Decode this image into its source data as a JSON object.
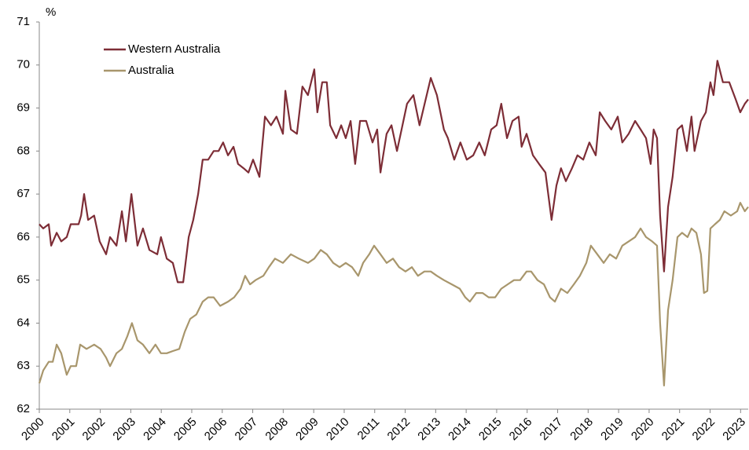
{
  "chart_data": {
    "type": "line",
    "y_unit_label": "%",
    "xlim": [
      2000,
      2023.25
    ],
    "xticks": [
      2000,
      2001,
      2002,
      2003,
      2004,
      2005,
      2006,
      2007,
      2008,
      2009,
      2010,
      2011,
      2012,
      2013,
      2014,
      2015,
      2016,
      2017,
      2018,
      2019,
      2020,
      2021,
      2022,
      2023
    ],
    "ylim": [
      62,
      71
    ],
    "yticks": [
      62,
      63,
      64,
      65,
      66,
      67,
      68,
      69,
      70,
      71
    ],
    "grid": false,
    "legend": "upper left",
    "series": [
      {
        "name": "Western Australia",
        "color": "#7d2d36",
        "x": [
          2000.0,
          2000.13,
          2000.31,
          2000.39,
          2000.57,
          2000.72,
          2000.9,
          2001.03,
          2001.29,
          2001.37,
          2001.47,
          2001.6,
          2001.8,
          2001.98,
          2002.19,
          2002.32,
          2002.53,
          2002.71,
          2002.84,
          2003.02,
          2003.22,
          2003.4,
          2003.61,
          2003.87,
          2003.99,
          2004.18,
          2004.38,
          2004.54,
          2004.72,
          2004.9,
          2005.05,
          2005.21,
          2005.36,
          2005.54,
          2005.72,
          2005.88,
          2006.03,
          2006.19,
          2006.37,
          2006.52,
          2006.7,
          2006.86,
          2007.01,
          2007.22,
          2007.4,
          2007.6,
          2007.78,
          2007.99,
          2008.07,
          2008.25,
          2008.45,
          2008.63,
          2008.81,
          2009.02,
          2009.12,
          2009.28,
          2009.43,
          2009.54,
          2009.74,
          2009.9,
          2010.05,
          2010.21,
          2010.36,
          2010.52,
          2010.72,
          2010.93,
          2011.08,
          2011.19,
          2011.39,
          2011.55,
          2011.73,
          2011.91,
          2012.06,
          2012.27,
          2012.47,
          2012.84,
          2013.04,
          2013.27,
          2013.4,
          2013.61,
          2013.81,
          2014.02,
          2014.23,
          2014.43,
          2014.61,
          2014.82,
          2015.0,
          2015.15,
          2015.34,
          2015.52,
          2015.72,
          2015.82,
          2015.98,
          2016.19,
          2016.39,
          2016.6,
          2016.8,
          2016.96,
          2017.11,
          2017.27,
          2017.47,
          2017.65,
          2017.84,
          2018.04,
          2018.25,
          2018.38,
          2018.56,
          2018.76,
          2018.97,
          2019.12,
          2019.33,
          2019.54,
          2019.72,
          2019.9,
          2020.05,
          2020.15,
          2020.26,
          2020.36,
          2020.49,
          2020.62,
          2020.77,
          2020.93,
          2021.08,
          2021.24,
          2021.39,
          2021.49,
          2021.7,
          2021.86,
          2022.01,
          2022.11,
          2022.24,
          2022.42,
          2022.63,
          2022.84,
          2022.99,
          2023.14,
          2023.25
        ],
        "values": [
          66.3,
          66.2,
          66.3,
          65.8,
          66.1,
          65.9,
          66.0,
          66.3,
          66.3,
          66.5,
          67.0,
          66.4,
          66.5,
          65.9,
          65.6,
          66.0,
          65.8,
          66.6,
          65.9,
          67.0,
          65.8,
          66.2,
          65.7,
          65.6,
          66.0,
          65.5,
          65.4,
          64.95,
          64.95,
          66.0,
          66.4,
          67.0,
          67.8,
          67.8,
          68.0,
          68.0,
          68.2,
          67.9,
          68.1,
          67.7,
          67.6,
          67.5,
          67.8,
          67.4,
          68.8,
          68.6,
          68.8,
          68.4,
          69.4,
          68.5,
          68.4,
          69.5,
          69.3,
          69.9,
          68.9,
          69.6,
          69.6,
          68.6,
          68.3,
          68.6,
          68.3,
          68.7,
          67.7,
          68.7,
          68.7,
          68.2,
          68.5,
          67.5,
          68.4,
          68.6,
          68.0,
          68.6,
          69.1,
          69.3,
          68.6,
          69.7,
          69.3,
          68.5,
          68.3,
          67.8,
          68.2,
          67.8,
          67.9,
          68.2,
          67.9,
          68.5,
          68.6,
          69.1,
          68.3,
          68.7,
          68.8,
          68.1,
          68.4,
          67.9,
          67.7,
          67.5,
          66.4,
          67.2,
          67.6,
          67.3,
          67.6,
          67.9,
          67.8,
          68.2,
          67.9,
          68.9,
          68.7,
          68.5,
          68.8,
          68.2,
          68.4,
          68.7,
          68.5,
          68.3,
          67.7,
          68.5,
          68.3,
          66.5,
          65.2,
          66.7,
          67.4,
          68.5,
          68.6,
          68.0,
          68.8,
          68.0,
          68.7,
          68.9,
          69.6,
          69.3,
          70.1,
          69.6,
          69.6,
          69.2,
          68.9,
          69.1,
          69.2
        ]
      },
      {
        "name": "Australia",
        "color": "#a8966c",
        "x": [
          2000.0,
          2000.13,
          2000.31,
          2000.44,
          2000.57,
          2000.72,
          2000.9,
          2001.03,
          2001.21,
          2001.34,
          2001.55,
          2001.8,
          2002.01,
          2002.19,
          2002.32,
          2002.53,
          2002.71,
          2002.89,
          2003.04,
          2003.22,
          2003.4,
          2003.61,
          2003.81,
          2003.99,
          2004.18,
          2004.38,
          2004.59,
          2004.77,
          2004.95,
          2005.15,
          2005.36,
          2005.54,
          2005.72,
          2005.93,
          2006.19,
          2006.39,
          2006.6,
          2006.75,
          2006.91,
          2007.09,
          2007.35,
          2007.53,
          2007.73,
          2007.99,
          2008.25,
          2008.51,
          2008.81,
          2009.02,
          2009.23,
          2009.43,
          2009.64,
          2009.85,
          2010.05,
          2010.26,
          2010.46,
          2010.62,
          2010.82,
          2010.98,
          2011.19,
          2011.39,
          2011.6,
          2011.8,
          2012.01,
          2012.22,
          2012.42,
          2012.63,
          2012.84,
          2013.04,
          2013.27,
          2013.53,
          2013.79,
          2013.97,
          2014.12,
          2014.33,
          2014.54,
          2014.74,
          2014.95,
          2015.15,
          2015.36,
          2015.57,
          2015.77,
          2015.98,
          2016.13,
          2016.34,
          2016.55,
          2016.75,
          2016.91,
          2017.11,
          2017.32,
          2017.53,
          2017.73,
          2017.94,
          2018.09,
          2018.3,
          2018.51,
          2018.71,
          2018.92,
          2019.12,
          2019.33,
          2019.54,
          2019.72,
          2019.9,
          2020.1,
          2020.26,
          2020.36,
          2020.49,
          2020.62,
          2020.77,
          2020.93,
          2021.08,
          2021.26,
          2021.39,
          2021.55,
          2021.7,
          2021.8,
          2021.91,
          2022.01,
          2022.16,
          2022.32,
          2022.47,
          2022.68,
          2022.89,
          2022.99,
          2023.14,
          2023.25
        ],
        "values": [
          62.6,
          62.9,
          63.1,
          63.1,
          63.5,
          63.3,
          62.8,
          63.0,
          63.0,
          63.5,
          63.4,
          63.5,
          63.4,
          63.2,
          63.0,
          63.3,
          63.4,
          63.7,
          64.0,
          63.6,
          63.5,
          63.3,
          63.5,
          63.3,
          63.3,
          63.35,
          63.4,
          63.8,
          64.1,
          64.2,
          64.5,
          64.6,
          64.6,
          64.4,
          64.5,
          64.6,
          64.8,
          65.1,
          64.9,
          65.0,
          65.1,
          65.3,
          65.5,
          65.4,
          65.6,
          65.5,
          65.4,
          65.5,
          65.7,
          65.6,
          65.4,
          65.3,
          65.4,
          65.3,
          65.1,
          65.4,
          65.6,
          65.8,
          65.6,
          65.4,
          65.5,
          65.3,
          65.2,
          65.3,
          65.1,
          65.2,
          65.2,
          65.1,
          65.0,
          64.9,
          64.8,
          64.6,
          64.5,
          64.7,
          64.7,
          64.6,
          64.6,
          64.8,
          64.9,
          65.0,
          65.0,
          65.2,
          65.2,
          65.0,
          64.9,
          64.6,
          64.5,
          64.8,
          64.7,
          64.9,
          65.1,
          65.4,
          65.8,
          65.6,
          65.4,
          65.6,
          65.5,
          65.8,
          65.9,
          66.0,
          66.2,
          66.0,
          65.9,
          65.8,
          64.0,
          62.55,
          64.3,
          65.0,
          66.0,
          66.1,
          66.0,
          66.2,
          66.1,
          65.6,
          64.7,
          64.75,
          66.2,
          66.3,
          66.4,
          66.6,
          66.5,
          66.6,
          66.8,
          66.6,
          66.7
        ]
      }
    ]
  }
}
